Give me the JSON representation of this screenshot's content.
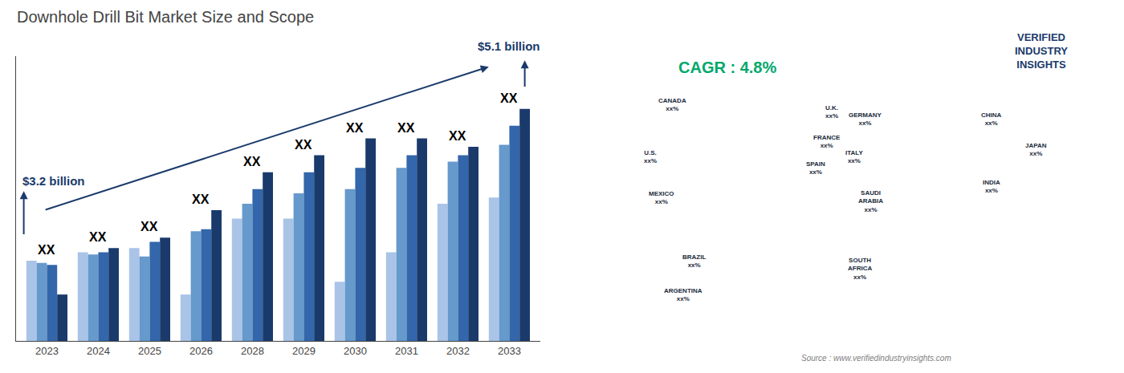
{
  "chart_data": {
    "type": "bar",
    "title": "Downhole Drill Bit Market Size and Scope",
    "categories": [
      "2023",
      "2024",
      "2025",
      "2026",
      "2028",
      "2029",
      "2030",
      "2031",
      "2032",
      "2033"
    ],
    "series": [
      {
        "color": "#aac4e8",
        "values": [
          0.38,
          0.42,
          0.44,
          0.22,
          0.58,
          0.58,
          0.28,
          0.42,
          0.65,
          0.68
        ]
      },
      {
        "color": "#6699cc",
        "values": [
          0.37,
          0.41,
          0.4,
          0.52,
          0.65,
          0.7,
          0.72,
          0.82,
          0.85,
          0.93
        ]
      },
      {
        "color": "#3366aa",
        "values": [
          0.36,
          0.42,
          0.47,
          0.53,
          0.72,
          0.8,
          0.82,
          0.88,
          0.88,
          1.02
        ]
      },
      {
        "color": "#1a3a6b",
        "values": [
          0.22,
          0.44,
          0.49,
          0.62,
          0.8,
          0.88,
          0.96,
          0.96,
          0.92,
          1.1
        ]
      }
    ],
    "ylim": [
      0,
      1.35
    ],
    "grid": false,
    "tick_labels": "x",
    "annotations": [
      {
        "text": "XX",
        "x": "2023"
      },
      {
        "text": "XX",
        "x": "2024"
      },
      {
        "text": "XX",
        "x": "2025"
      },
      {
        "text": "XX",
        "x": "2026"
      },
      {
        "text": "XX",
        "x": "2028"
      },
      {
        "text": "XX",
        "x": "2029"
      },
      {
        "text": "XX",
        "x": "2030"
      },
      {
        "text": "XX",
        "x": "2031"
      },
      {
        "text": "XX",
        "x": "2032"
      },
      {
        "text": "XX",
        "x": "2033"
      },
      {
        "text": "$3.2 billion",
        "x": "2023",
        "color": "#1a3a6b"
      },
      {
        "text": "$5.1 billion",
        "x": "2033",
        "color": "#1a3a6b"
      },
      {
        "text": "CAGR : 4.8%",
        "color": "#00a86b"
      },
      {
        "text": "Source : www.verifiedindustryinsights.com",
        "color": "gray"
      },
      {
        "text": "VERIFIED\nINDUSTRY\nINSIGHTS",
        "color": "#1a3a6b"
      },
      {
        "text": "CANADA\nxx%",
        "color": "#1a2a3a"
      },
      {
        "text": "U.S.\nxx%",
        "color": "#1a2a3a"
      },
      {
        "text": "MEXICO\nxx%",
        "color": "#1a2a3a"
      },
      {
        "text": "BRAZIL\nxx%",
        "color": "#1a2a3a"
      },
      {
        "text": "ARGENTINA\nxx%",
        "color": "#1a2a3a"
      },
      {
        "text": "U.K.\nxx%",
        "color": "#1a2a3a"
      },
      {
        "text": "FRANCE\nxx%",
        "color": "#1a2a3a"
      },
      {
        "text": "SPAIN\nxx%",
        "color": "#1a2a3a"
      },
      {
        "text": "GERMANY\nxx%",
        "color": "#1a2a3a"
      },
      {
        "text": "ITALY\nxx%",
        "color": "#1a2a3a"
      },
      {
        "text": "SAUDI\nARABIA\nxx%",
        "color": "#1a2a3a"
      },
      {
        "text": "SOUTH\nAFRICA\nxx%",
        "color": "#1a2a3a"
      },
      {
        "text": "CHINA\nxx%",
        "color": "#1a2a3a"
      },
      {
        "text": "JAPAN\nxx%",
        "color": "#1a2a3a"
      },
      {
        "text": "INDIA\nxx%",
        "color": "#1a2a3a"
      }
    ]
  }
}
